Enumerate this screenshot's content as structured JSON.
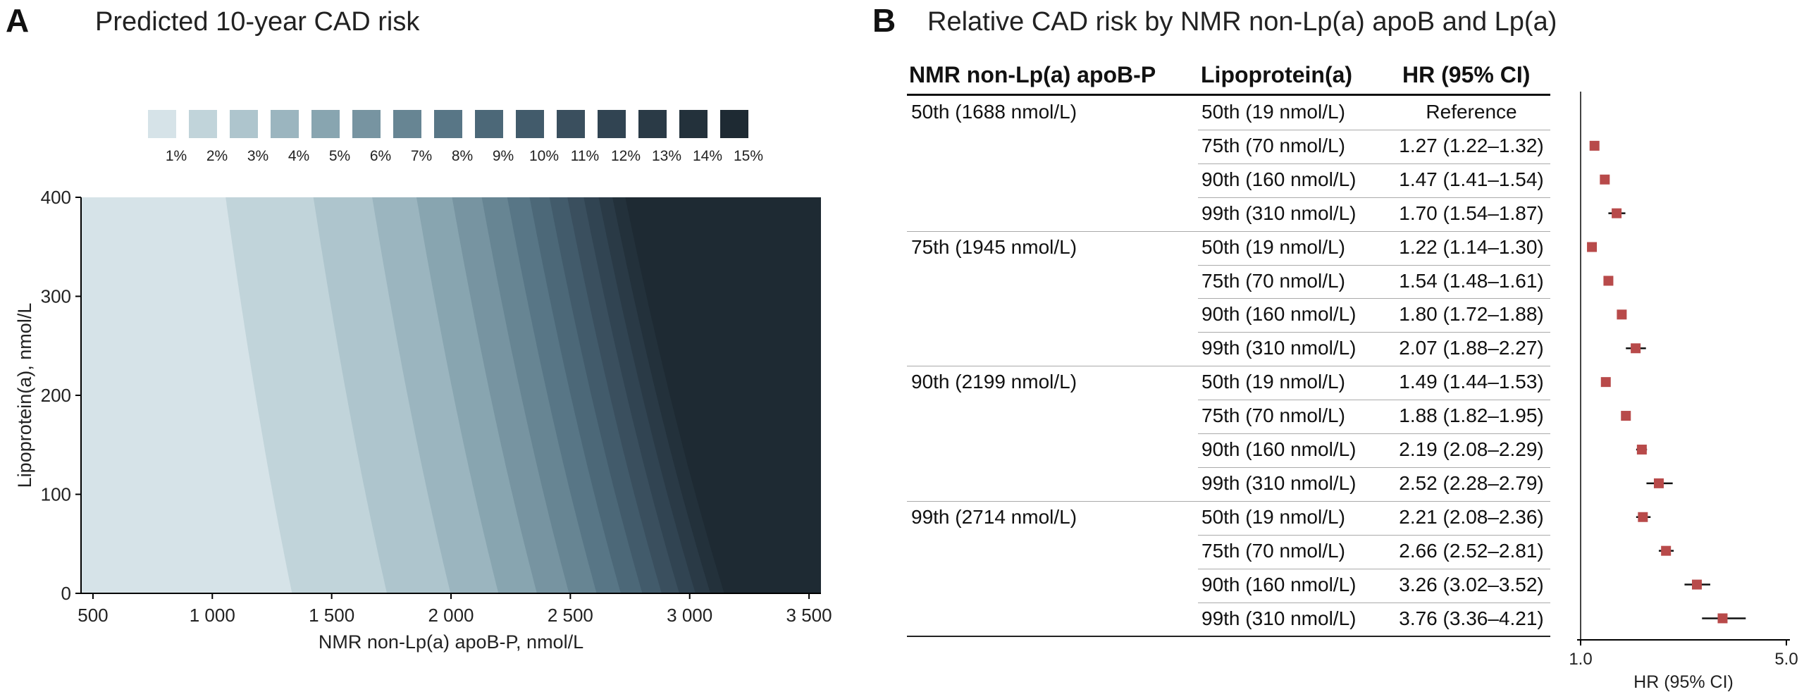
{
  "panel_a": {
    "letter": "A",
    "title": "Predicted 10-year CAD risk"
  },
  "panel_b": {
    "letter": "B",
    "title": "Relative CAD risk by NMR non-Lp(a) apoB and Lp(a)",
    "col_apob": "NMR non-Lp(a) apoB-P",
    "col_lpa": "Lipoprotein(a)",
    "col_hr": "HR (95% CI)"
  },
  "chart_data": [
    {
      "type": "heatmap",
      "title": "Predicted 10-year CAD risk",
      "xlabel": "NMR non-Lp(a) apoB-P, nmol/L",
      "ylabel": "Lipoprotein(a), nmol/L",
      "xlim": [
        450,
        3550
      ],
      "ylim": [
        0,
        400
      ],
      "x_ticks": [
        500,
        1000,
        1500,
        2000,
        2500,
        3000,
        3500
      ],
      "x_tick_labels": [
        "500",
        "1 000",
        "1 500",
        "2 000",
        "2 500",
        "3 000",
        "3 500"
      ],
      "y_ticks": [
        0,
        100,
        200,
        300,
        400
      ],
      "y_tick_labels": [
        "0",
        "100",
        "200",
        "300",
        "400"
      ],
      "legend_levels": [
        "1%",
        "2%",
        "3%",
        "4%",
        "5%",
        "6%",
        "7%",
        "8%",
        "9%",
        "10%",
        "11%",
        "12%",
        "13%",
        "14%",
        "15%"
      ],
      "legend_colors": [
        "#d6e3e8",
        "#c1d4da",
        "#aec5cd",
        "#9bb5bf",
        "#88a5b0",
        "#7794a1",
        "#678593",
        "#587686",
        "#4c6878",
        "#425b6b",
        "#3a4f5e",
        "#314452",
        "#2a3a46",
        "#23313b",
        "#1e2a33"
      ],
      "legend_position": "top"
    },
    {
      "type": "scatter",
      "subtype": "forest",
      "xlabel": "HR (95% CI)",
      "xlim": [
        1.0,
        5.0
      ],
      "x_tick_labels": [
        "1.0",
        "5.0"
      ],
      "marker_color": "#b84a4a",
      "rows": [
        {
          "apob": "50th (1688 nmol/L)",
          "lpa": "50th (19 nmol/L)",
          "hr_text": "Reference",
          "hr": null,
          "lo": null,
          "hi": null
        },
        {
          "apob": "",
          "lpa": "75th (70 nmol/L)",
          "hr_text": "1.27 (1.22–1.32)",
          "hr": 1.27,
          "lo": 1.22,
          "hi": 1.32
        },
        {
          "apob": "",
          "lpa": "90th (160 nmol/L)",
          "hr_text": "1.47 (1.41–1.54)",
          "hr": 1.47,
          "lo": 1.41,
          "hi": 1.54
        },
        {
          "apob": "",
          "lpa": "99th (310 nmol/L)",
          "hr_text": "1.70 (1.54–1.87)",
          "hr": 1.7,
          "lo": 1.54,
          "hi": 1.87
        },
        {
          "apob": "75th (1945 nmol/L)",
          "lpa": "50th (19 nmol/L)",
          "hr_text": "1.22 (1.14–1.30)",
          "hr": 1.22,
          "lo": 1.14,
          "hi": 1.3
        },
        {
          "apob": "",
          "lpa": "75th (70 nmol/L)",
          "hr_text": "1.54 (1.48–1.61)",
          "hr": 1.54,
          "lo": 1.48,
          "hi": 1.61
        },
        {
          "apob": "",
          "lpa": "90th (160 nmol/L)",
          "hr_text": "1.80 (1.72–1.88)",
          "hr": 1.8,
          "lo": 1.72,
          "hi": 1.88
        },
        {
          "apob": "",
          "lpa": "99th (310 nmol/L)",
          "hr_text": "2.07 (1.88–2.27)",
          "hr": 2.07,
          "lo": 1.88,
          "hi": 2.27
        },
        {
          "apob": "90th (2199 nmol/L)",
          "lpa": "50th (19 nmol/L)",
          "hr_text": "1.49 (1.44–1.53)",
          "hr": 1.49,
          "lo": 1.44,
          "hi": 1.53
        },
        {
          "apob": "",
          "lpa": "75th (70 nmol/L)",
          "hr_text": "1.88 (1.82–1.95)",
          "hr": 1.88,
          "lo": 1.82,
          "hi": 1.95
        },
        {
          "apob": "",
          "lpa": "90th (160 nmol/L)",
          "hr_text": "2.19 (2.08–2.29)",
          "hr": 2.19,
          "lo": 2.08,
          "hi": 2.29
        },
        {
          "apob": "",
          "lpa": "99th (310 nmol/L)",
          "hr_text": "2.52 (2.28–2.79)",
          "hr": 2.52,
          "lo": 2.28,
          "hi": 2.79
        },
        {
          "apob": "99th (2714 nmol/L)",
          "lpa": "50th (19 nmol/L)",
          "hr_text": "2.21 (2.08–2.36)",
          "hr": 2.21,
          "lo": 2.08,
          "hi": 2.36
        },
        {
          "apob": "",
          "lpa": "75th (70 nmol/L)",
          "hr_text": "2.66 (2.52–2.81)",
          "hr": 2.66,
          "lo": 2.52,
          "hi": 2.81
        },
        {
          "apob": "",
          "lpa": "90th (160 nmol/L)",
          "hr_text": "3.26 (3.02–3.52)",
          "hr": 3.26,
          "lo": 3.02,
          "hi": 3.52
        },
        {
          "apob": "",
          "lpa": "99th (310 nmol/L)",
          "hr_text": "3.76 (3.36–4.21)",
          "hr": 3.76,
          "lo": 3.36,
          "hi": 4.21
        }
      ]
    }
  ]
}
